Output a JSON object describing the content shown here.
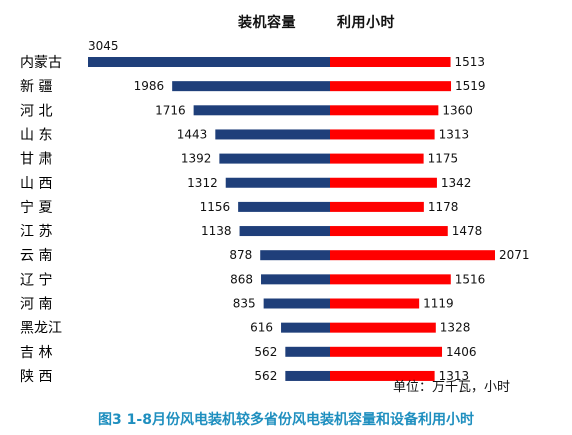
{
  "header": {
    "capacity_label": "装机容量",
    "hours_label": "利用小时"
  },
  "unit": "单位：万千瓦，小时",
  "caption": "图3  1-8月份风电装机较多省份风电装机容量和设备利用小时",
  "colors": {
    "capacity": "#1f3f7a",
    "hours": "#ff0000"
  },
  "chart_data": {
    "type": "bar",
    "orientation": "horizontal-butterfly",
    "categories": [
      "内蒙古",
      "新  疆",
      "河  北",
      "山  东",
      "甘  肃",
      "山  西",
      "宁  夏",
      "江  苏",
      "云  南",
      "辽  宁",
      "河  南",
      "黑龙江",
      "吉  林",
      "陕  西"
    ],
    "series": [
      {
        "name": "装机容量",
        "values": [
          3045,
          1986,
          1716,
          1443,
          1392,
          1312,
          1156,
          1138,
          878,
          868,
          835,
          616,
          562,
          562
        ]
      },
      {
        "name": "利用小时",
        "values": [
          1513,
          1519,
          1360,
          1313,
          1175,
          1342,
          1178,
          1478,
          2071,
          1516,
          1119,
          1328,
          1406,
          1313
        ]
      }
    ]
  }
}
